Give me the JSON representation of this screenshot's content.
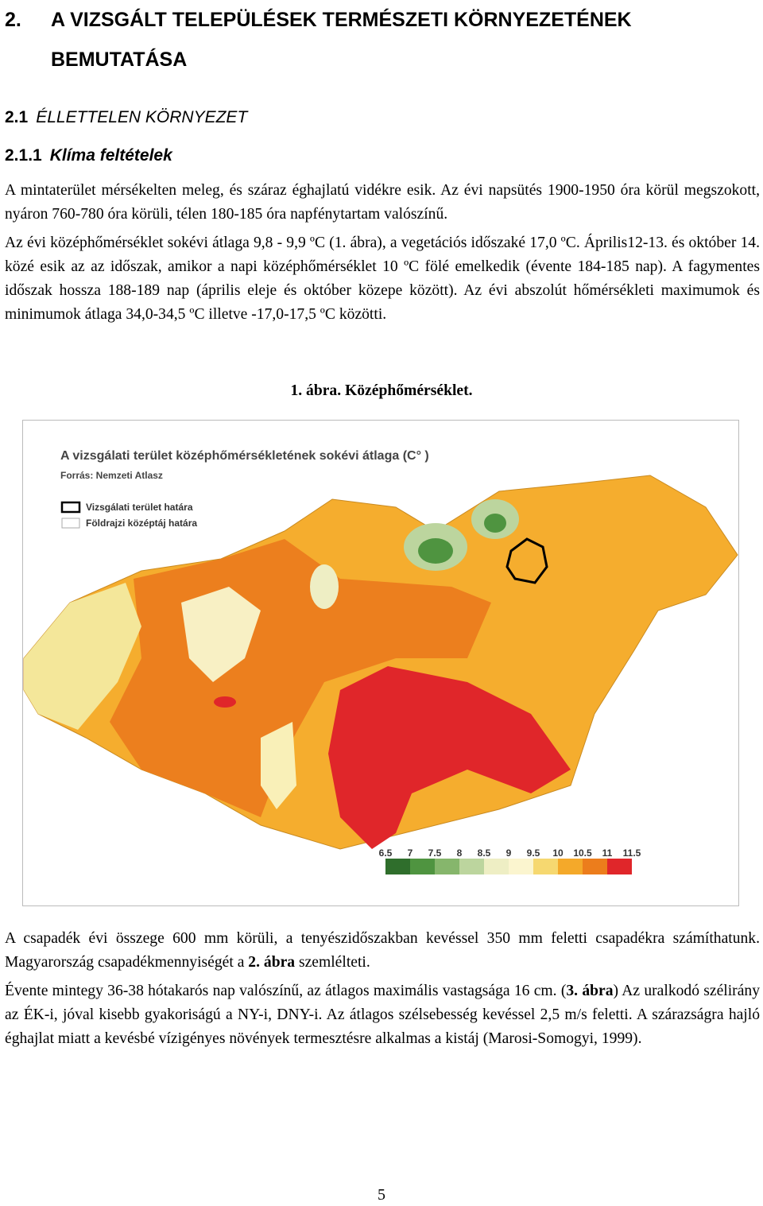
{
  "heading_1": {
    "number": "2.",
    "title": "A VIZSGÁLT TELEPÜLÉSEK TERMÉSZETI KÖRNYEZETÉNEK BEMUTATÁSA"
  },
  "heading_2": {
    "number": "2.1",
    "title": "ÉLLETTELEN KÖRNYEZET"
  },
  "heading_3": {
    "number": "2.1.1",
    "title": "Klíma feltételek"
  },
  "paragraphs_top": [
    [
      {
        "text": "A mintaterület mérsékelten meleg, és száraz éghajlatú vidékre esik. Az évi napsütés 1900-1950 óra körül megszokott, nyáron 760-780 óra körüli, télen 180-185 óra napfénytartam valószínű."
      }
    ],
    [
      {
        "text": "Az évi középhőmérséklet sokévi átlaga 9,8 - 9,9 ºC (1. ábra), a vegetációs időszaké 17,0 ºC. Április12-13. és október 14. közé esik az az időszak, amikor a napi középhőmérséklet 10 ºC fölé emelkedik (évente 184-185 nap). A fagymentes időszak hossza 188-189 nap (április eleje és október közepe között). Az évi abszolút hőmérsékleti maximumok és minimumok átlaga 34,0-34,5 ºC illetve -17,0-17,5 ºC közötti."
      }
    ]
  ],
  "figure": {
    "caption": "1. ábra. Középhőmérséklet.",
    "map_title": "A vizsgálati terület középhőmérsékletének sokévi átlaga (C° )",
    "map_source": "Forrás: Nemzeti Atlasz",
    "legend": [
      "Vizsgálati terület határa",
      "Földrajzi középtáj határa"
    ],
    "scale": {
      "labels": [
        6.5,
        7,
        7.5,
        8,
        8.5,
        9,
        9.5,
        10,
        10.5,
        11,
        11.5
      ],
      "colors": [
        "#2f6e2c",
        "#4f9440",
        "#86b66c",
        "#bcd59e",
        "#eeeec4",
        "#fbf5cf",
        "#f6d870",
        "#f4a92a",
        "#ec7d1c",
        "#e0262a"
      ]
    }
  },
  "paragraphs_bottom": [
    [
      {
        "text": "A csapadék évi összege 600 mm körüli, a tenyészidőszakban kevéssel 350 mm feletti csapadékra számíthatunk. Magyarország csapadékmennyiségét a "
      },
      {
        "text": "2. ábra",
        "bold": true
      },
      {
        "text": " szemlélteti."
      }
    ],
    [
      {
        "text": "Évente mintegy 36-38 hótakarós nap valószínű, az átlagos maximális vastagsága 16 cm. ("
      },
      {
        "text": "3. ábra",
        "bold": true
      },
      {
        "text": ") Az uralkodó szélirány az ÉK-i, jóval kisebb gyakoriságú a NY-i, DNY-i. Az átlagos szélsebesség kevéssel 2,5 m/s feletti. A szárazságra hajló éghajlat miatt a kevésbé vízigényes növények termesztésre alkalmas a kistáj (Marosi-Somogyi, 1999)."
      }
    ]
  ],
  "page_number": "5"
}
